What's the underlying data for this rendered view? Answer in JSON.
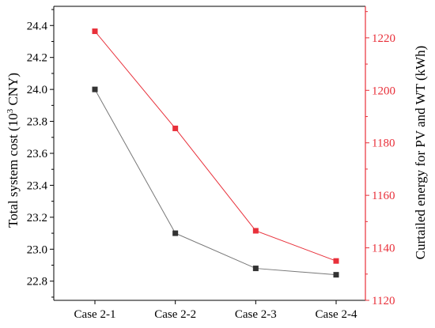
{
  "chart_data": {
    "type": "line",
    "categories": [
      "Case 2-1",
      "Case 2-2",
      "Case 2-3",
      "Case 2-4"
    ],
    "title": "",
    "xlabel": "",
    "ylabel_left_parts": {
      "pre": "Total system cost (10",
      "sup": "3",
      "post": " CNY)"
    },
    "ylabel_right": "Curtailed energy for PV and WT (kWh)",
    "y_left": {
      "lim": [
        22.68,
        24.52
      ],
      "ticks": [
        22.8,
        23.0,
        23.2,
        23.4,
        23.6,
        23.8,
        24.0,
        24.2,
        24.4
      ],
      "tick_labels": [
        "22.8",
        "23.0",
        "23.2",
        "23.4",
        "23.6",
        "23.8",
        "24.0",
        "24.2",
        "24.4"
      ]
    },
    "y_right": {
      "lim": [
        1120,
        1232
      ],
      "ticks": [
        1120,
        1140,
        1160,
        1180,
        1200,
        1220
      ],
      "tick_labels": [
        "1120",
        "1140",
        "1160",
        "1180",
        "1200",
        "1220"
      ]
    },
    "series": [
      {
        "axis": "left",
        "color": "#333333",
        "line_color": "#777777",
        "marker": "square",
        "values": [
          24.0,
          23.1,
          22.88,
          22.84
        ]
      },
      {
        "axis": "right",
        "color": "#e8303a",
        "line_color": "#e8303a",
        "marker": "square",
        "values": [
          1222.5,
          1185.5,
          1146.5,
          1135.0
        ]
      }
    ],
    "axis_colors": {
      "left": "#000000",
      "right": "#e8303a"
    },
    "grid": false,
    "legend": "none"
  }
}
